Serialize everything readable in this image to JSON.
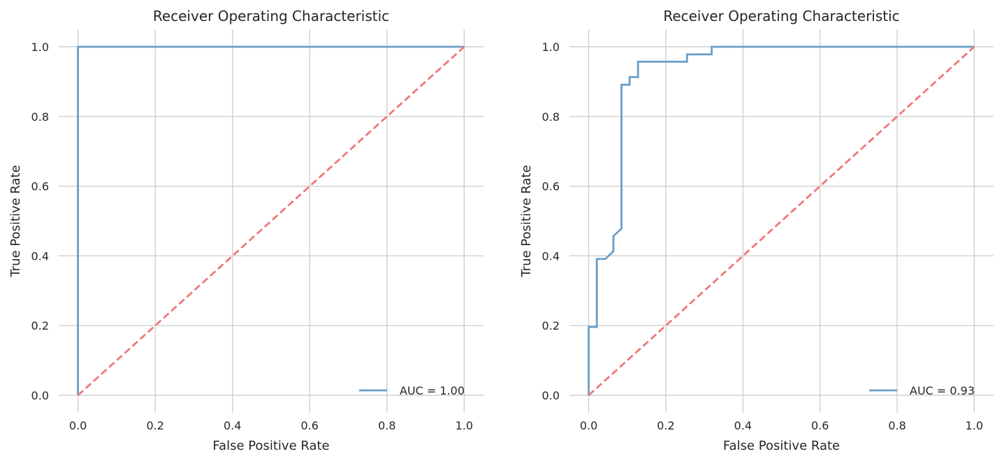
{
  "colors": {
    "roc_line": "#6b9ec6",
    "diagonal": "#ef767a",
    "grid": "#cccccc",
    "text": "#262626"
  },
  "chart_data": [
    {
      "type": "line",
      "title": "Receiver Operating Characteristic",
      "xlabel": "False Positive Rate",
      "ylabel": "True Positive Rate",
      "xlim": [
        -0.05,
        1.05
      ],
      "ylim": [
        -0.05,
        1.05
      ],
      "xticks": [
        "0.0",
        "0.2",
        "0.4",
        "0.6",
        "0.8",
        "1.0"
      ],
      "yticks": [
        "0.0",
        "0.2",
        "0.4",
        "0.6",
        "0.8",
        "1.0"
      ],
      "grid": true,
      "legend_position": "lower-right",
      "series": [
        {
          "name": "AUC = 1.00",
          "style": "solid",
          "x": [
            0,
            0,
            1
          ],
          "y": [
            0,
            1,
            1
          ]
        },
        {
          "style": "dashed",
          "x": [
            0,
            1
          ],
          "y": [
            0,
            1
          ]
        }
      ]
    },
    {
      "type": "line",
      "title": "Receiver Operating Characteristic",
      "xlabel": "False Positive Rate",
      "ylabel": "True Positive Rate",
      "xlim": [
        -0.05,
        1.05
      ],
      "ylim": [
        -0.05,
        1.05
      ],
      "xticks": [
        "0.0",
        "0.2",
        "0.4",
        "0.6",
        "0.8",
        "1.0"
      ],
      "yticks": [
        "0.0",
        "0.2",
        "0.4",
        "0.6",
        "0.8",
        "1.0"
      ],
      "grid": true,
      "legend_position": "lower-right",
      "series": [
        {
          "name": "AUC = 0.93",
          "style": "solid",
          "x": [
            0,
            0,
            0.021,
            0.021,
            0.043,
            0.064,
            0.064,
            0.085,
            0.085,
            0.106,
            0.106,
            0.128,
            0.128,
            0.255,
            0.255,
            0.319,
            0.319,
            1.0
          ],
          "y": [
            0,
            0.196,
            0.196,
            0.391,
            0.391,
            0.413,
            0.457,
            0.478,
            0.891,
            0.891,
            0.913,
            0.913,
            0.957,
            0.957,
            0.978,
            0.978,
            1.0,
            1.0
          ]
        },
        {
          "style": "dashed",
          "x": [
            0,
            1
          ],
          "y": [
            0,
            1
          ]
        }
      ]
    }
  ]
}
